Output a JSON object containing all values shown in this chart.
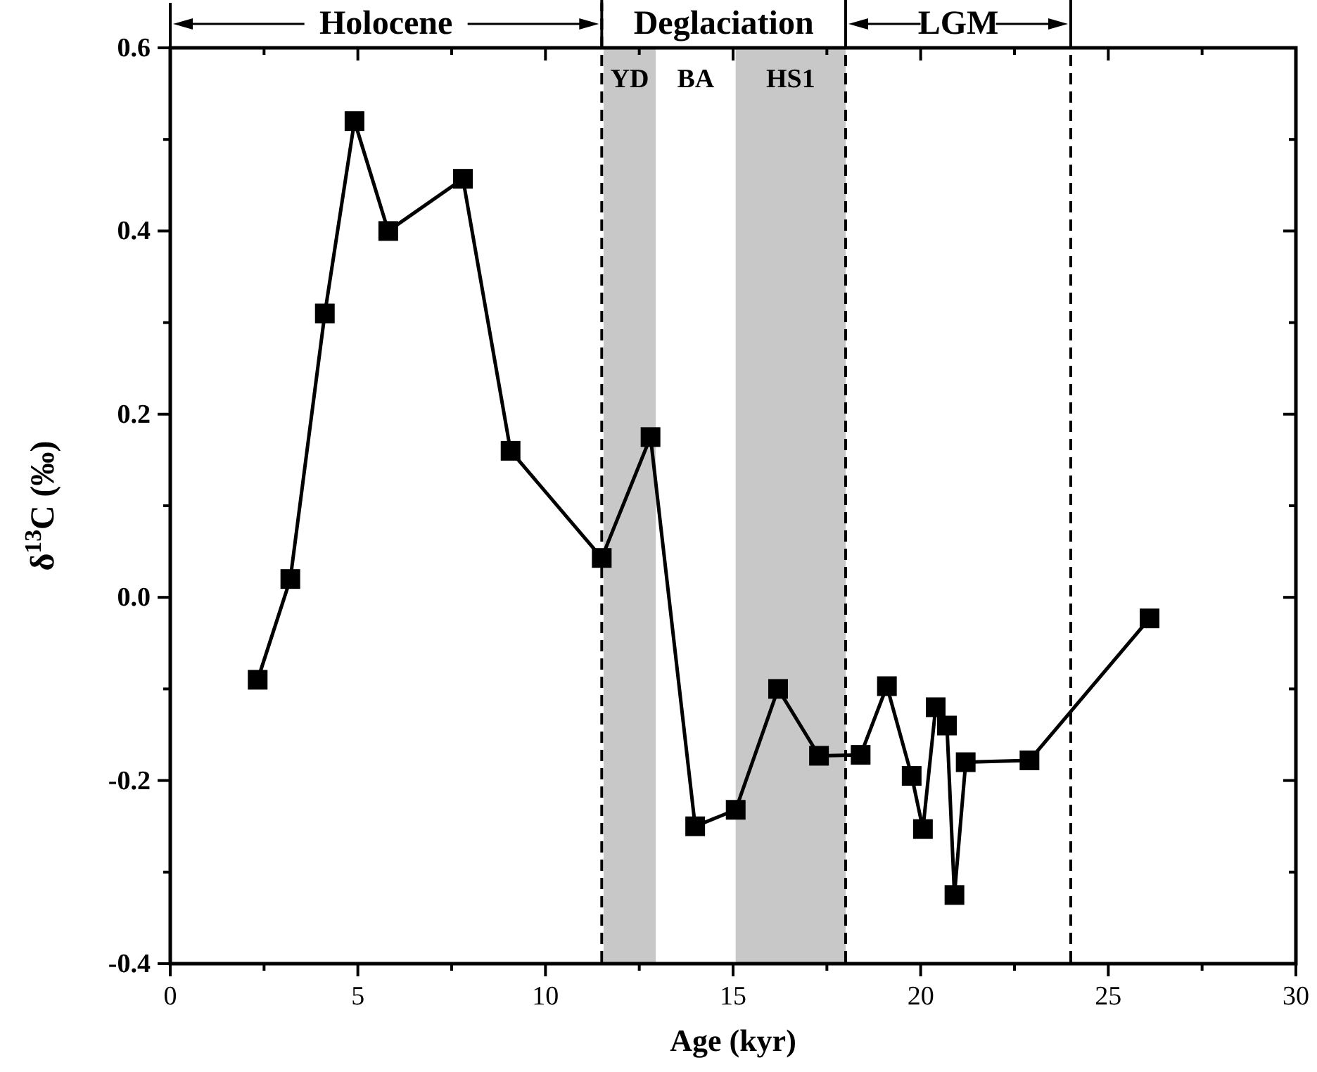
{
  "chart_data": {
    "type": "line",
    "xlabel": "Age (kyr)",
    "ylabel": "δ$^{13}$C (‰)",
    "marker": "square",
    "line_style": "solid",
    "grid": false,
    "x": [
      2.33,
      3.2,
      4.12,
      4.91,
      5.81,
      7.8,
      9.07,
      11.5,
      12.8,
      13.99,
      15.07,
      16.2,
      17.29,
      18.4,
      19.1,
      19.76,
      20.06,
      20.4,
      20.7,
      20.9,
      21.2,
      22.9,
      26.1
    ],
    "series": [
      {
        "color": "#000000",
        "values": [
          -0.09,
          0.02,
          0.31,
          0.52,
          0.4,
          0.457,
          0.16,
          0.043,
          0.175,
          -0.25,
          -0.232,
          -0.1,
          -0.173,
          -0.172,
          -0.097,
          -0.195,
          -0.253,
          -0.12,
          -0.14,
          -0.325,
          -0.18,
          -0.178,
          -0.023
        ]
      }
    ],
    "xlim": [
      0,
      30
    ],
    "ylim": [
      -0.4,
      0.6
    ],
    "xticks": [
      0,
      {
        "value": 2.5,
        "label": null
      },
      5,
      {
        "value": 7.5,
        "label": null
      },
      10,
      {
        "value": 12.5,
        "label": null
      },
      15,
      {
        "value": 17.5,
        "label": null
      },
      20,
      {
        "value": 22.5,
        "label": null
      },
      25,
      {
        "value": 27.5,
        "label": null
      },
      30
    ],
    "yticks": [
      -0.4,
      {
        "value": -0.3,
        "label": null
      },
      -0.2,
      {
        "value": -0.1,
        "label": null
      },
      {
        "value": 0,
        "label": "0.0"
      },
      {
        "value": 0.1,
        "label": null
      },
      0.2,
      {
        "value": 0.3,
        "label": null
      },
      0.4,
      {
        "value": 0.5,
        "label": null
      },
      0.6
    ],
    "bands": [
      {
        "axis": "x",
        "from": 11.55,
        "to": 12.94,
        "label": "YD",
        "color": "#c8c8c8"
      },
      {
        "axis": "x",
        "from": 15.07,
        "to": 18.0,
        "label": "HS1",
        "color": "#c8c8c8"
      }
    ],
    "ref_lines": [
      {
        "axis": "x",
        "value": 11.5,
        "line_style": "dashed",
        "color": "#000000"
      },
      {
        "axis": "x",
        "value": 18.0,
        "line_style": "dashed",
        "color": "#000000"
      },
      {
        "axis": "x",
        "value": 24.0,
        "line_style": "dashed",
        "color": "#000000"
      }
    ],
    "annotations": [
      "Holocene",
      "Deglaciation",
      "LGM",
      "BA"
    ]
  }
}
